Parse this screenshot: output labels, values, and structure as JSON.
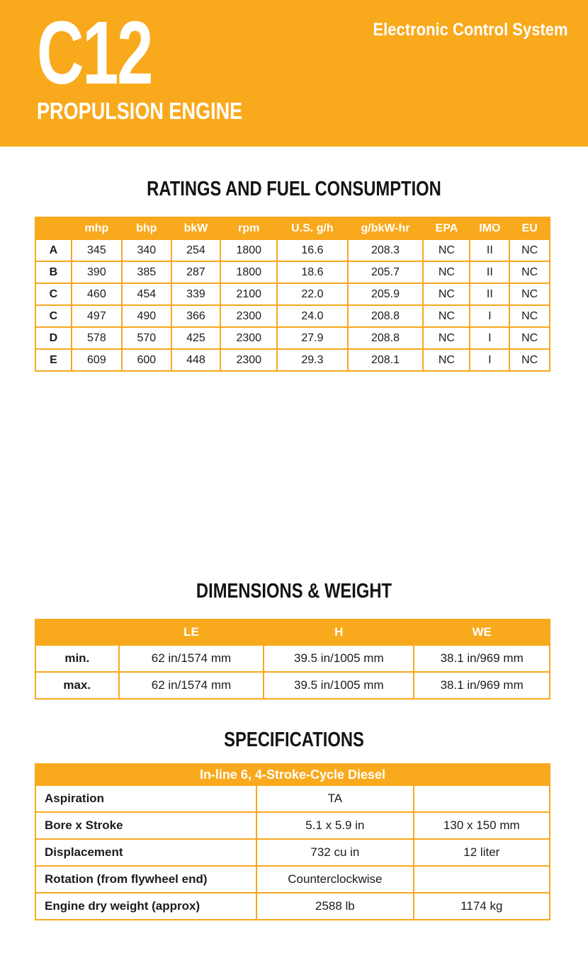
{
  "colors": {
    "accent": "#F9A91C",
    "table_border": "#F8A81F",
    "header_text": "#FFFFFF",
    "body_text": "#1D1B1C"
  },
  "header": {
    "model": "C12",
    "tagline": "Electronic Control System",
    "subtitle": "PROPULSION ENGINE"
  },
  "ratings": {
    "title": "RATINGS AND FUEL CONSUMPTION",
    "columns": [
      "",
      "mhp",
      "bhp",
      "bkW",
      "rpm",
      "U.S. g/h",
      "g/bkW-hr",
      "EPA",
      "IMO",
      "EU"
    ],
    "rows": [
      [
        "A",
        "345",
        "340",
        "254",
        "1800",
        "16.6",
        "208.3",
        "NC",
        "II",
        "NC"
      ],
      [
        "B",
        "390",
        "385",
        "287",
        "1800",
        "18.6",
        "205.7",
        "NC",
        "II",
        "NC"
      ],
      [
        "C",
        "460",
        "454",
        "339",
        "2100",
        "22.0",
        "205.9",
        "NC",
        "II",
        "NC"
      ],
      [
        "C",
        "497",
        "490",
        "366",
        "2300",
        "24.0",
        "208.8",
        "NC",
        "I",
        "NC"
      ],
      [
        "D",
        "578",
        "570",
        "425",
        "2300",
        "27.9",
        "208.8",
        "NC",
        "I",
        "NC"
      ],
      [
        "E",
        "609",
        "600",
        "448",
        "2300",
        "29.3",
        "208.1",
        "NC",
        "I",
        "NC"
      ]
    ]
  },
  "dimensions": {
    "title": "DIMENSIONS & WEIGHT",
    "columns": [
      "",
      "LE",
      "H",
      "WE"
    ],
    "rows": [
      [
        "min.",
        "62 in/1574 mm",
        "39.5 in/1005 mm",
        "38.1 in/969 mm"
      ],
      [
        "max.",
        "62 in/1574 mm",
        "39.5 in/1005 mm",
        "38.1 in/969 mm"
      ]
    ]
  },
  "specifications": {
    "title": "SPECIFICATIONS",
    "header": "In-line 6, 4-Stroke-Cycle Diesel",
    "rows": [
      [
        "Aspiration",
        "TA",
        ""
      ],
      [
        "Bore x Stroke",
        "5.1 x 5.9 in",
        "130 x 150 mm"
      ],
      [
        "Displacement",
        "732 cu in",
        "12 liter"
      ],
      [
        "Rotation (from flywheel end)",
        "Counterclockwise",
        ""
      ],
      [
        "Engine dry weight (approx)",
        "2588 lb",
        "1174 kg"
      ]
    ]
  }
}
